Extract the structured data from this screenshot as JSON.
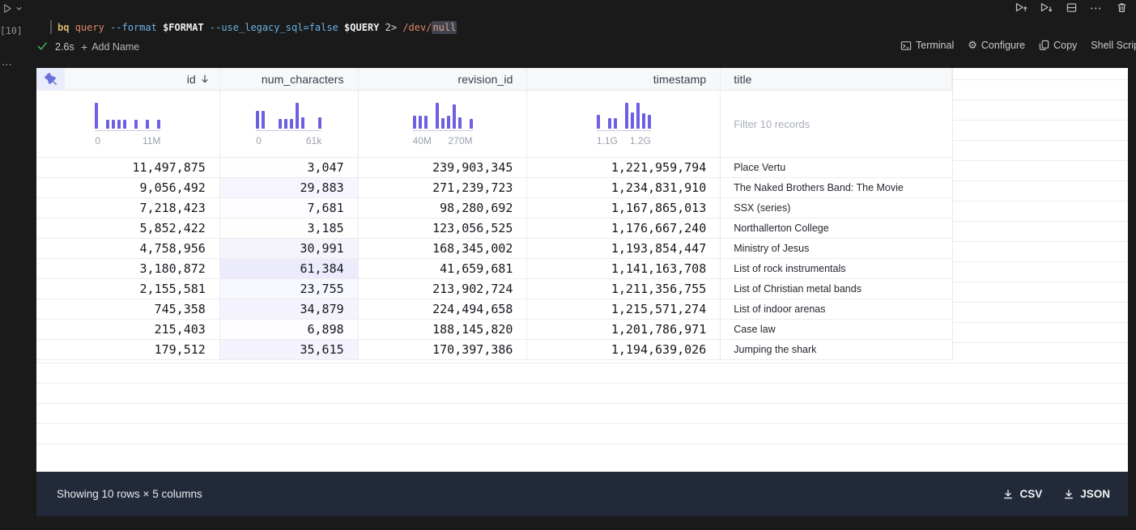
{
  "colors": {
    "accent": "#6e60e2",
    "header_bg": "#f7f8fa",
    "footer_bg": "#222938",
    "app_bg": "#1a1a1a",
    "num_shading": "rgba(106,97,226,0.13)",
    "check_green": "#3fae57",
    "pin_bg": "#e9ecfb"
  },
  "gutter": {
    "run_icon": "run-cell",
    "execution_count": "[10]",
    "more": "⋯"
  },
  "top_toolbar": {
    "icons": [
      "run-cells-above",
      "run-cells-below",
      "split-cell",
      "more-options",
      "delete-cell"
    ],
    "more_glyph": "⋯"
  },
  "cell": {
    "command": {
      "segments": [
        {
          "text": "bq ",
          "color": "#d9b868",
          "bold": true
        },
        {
          "text": "query ",
          "color": "#e08767"
        },
        {
          "text": "--format ",
          "color": "#6cb1e4"
        },
        {
          "text": "$FORMAT ",
          "color": "#efefef",
          "bold": true
        },
        {
          "text": "--use_legacy_sql=false ",
          "color": "#6cb1e4"
        },
        {
          "text": "$QUERY ",
          "color": "#efefef",
          "bold": true
        },
        {
          "text": "2> ",
          "color": "#d4d4d4"
        },
        {
          "text": "/dev/",
          "color": "#e08767"
        },
        {
          "text": "null",
          "color": "#e0a08c",
          "highlight": true
        }
      ]
    },
    "status": {
      "duration": "2.6s",
      "add_name_label": "Add Name"
    },
    "actions": [
      {
        "label": "Terminal",
        "icon": "terminal-icon"
      },
      {
        "label": "Configure",
        "icon": "gear-icon"
      },
      {
        "label": "Copy",
        "icon": "copy-icon"
      },
      {
        "label": "Shell Script",
        "icon": ""
      }
    ]
  },
  "table": {
    "columns": [
      {
        "key": "id",
        "label": "id",
        "align": "right",
        "sorted": "desc",
        "hist": {
          "bars": [
            1,
            0,
            0.34,
            0.34,
            0.34,
            0.34,
            0,
            0.34,
            0,
            0.34,
            0,
            0.34
          ],
          "min_label": "0",
          "max_label": "11M"
        }
      },
      {
        "key": "num_characters",
        "label": "num_characters",
        "align": "right",
        "hist": {
          "bars": [
            0.68,
            0.68,
            0,
            0,
            0.36,
            0.36,
            0.38,
            1,
            0.44,
            0,
            0,
            0.44
          ],
          "min_label": "0",
          "max_label": "61k"
        }
      },
      {
        "key": "revision_id",
        "label": "revision_id",
        "align": "right",
        "hist": {
          "bars": [
            0.5,
            0.5,
            0.5,
            0,
            1,
            0.42,
            0.5,
            0.95,
            0.45,
            0,
            0.36
          ],
          "min_label": "40M",
          "max_label": "270M"
        }
      },
      {
        "key": "timestamp",
        "label": "timestamp",
        "align": "right",
        "hist": {
          "bars": [
            0.52,
            0,
            0.4,
            0.4,
            0,
            1,
            0.62,
            1,
            0.6,
            0.52
          ],
          "min_label": "1.1G",
          "max_label": "1.2G"
        }
      },
      {
        "key": "title",
        "label": "title",
        "align": "left",
        "filter_placeholder": "Filter 10 records"
      }
    ],
    "rows": [
      {
        "id": "11,497,875",
        "num_characters": "3,047",
        "revision_id": "239,903,345",
        "timestamp": "1,221,959,794",
        "title": "Place Vertu"
      },
      {
        "id": "9,056,492",
        "num_characters": "29,883",
        "revision_id": "271,239,723",
        "timestamp": "1,234,831,910",
        "title": "The Naked Brothers Band: The Movie"
      },
      {
        "id": "7,218,423",
        "num_characters": "7,681",
        "revision_id": "98,280,692",
        "timestamp": "1,167,865,013",
        "title": "SSX (series)"
      },
      {
        "id": "5,852,422",
        "num_characters": "3,185",
        "revision_id": "123,056,525",
        "timestamp": "1,176,667,240",
        "title": "Northallerton College"
      },
      {
        "id": "4,758,956",
        "num_characters": "30,991",
        "revision_id": "168,345,002",
        "timestamp": "1,193,854,447",
        "title": "Ministry of Jesus"
      },
      {
        "id": "3,180,872",
        "num_characters": "61,384",
        "revision_id": "41,659,681",
        "timestamp": "1,141,163,708",
        "title": "List of rock instrumentals"
      },
      {
        "id": "2,155,581",
        "num_characters": "23,755",
        "revision_id": "213,902,724",
        "timestamp": "1,211,356,755",
        "title": "List of Christian metal bands"
      },
      {
        "id": "745,358",
        "num_characters": "34,879",
        "revision_id": "224,494,658",
        "timestamp": "1,215,571,274",
        "title": "List of indoor arenas"
      },
      {
        "id": "215,403",
        "num_characters": "6,898",
        "revision_id": "188,145,820",
        "timestamp": "1,201,786,971",
        "title": "Case law"
      },
      {
        "id": "179,512",
        "num_characters": "35,615",
        "revision_id": "170,397,386",
        "timestamp": "1,194,639,026",
        "title": "Jumping the shark"
      }
    ]
  },
  "footer": {
    "summary": "Showing 10 rows × 5 columns",
    "downloads": [
      {
        "label": "CSV"
      },
      {
        "label": "JSON"
      }
    ]
  }
}
